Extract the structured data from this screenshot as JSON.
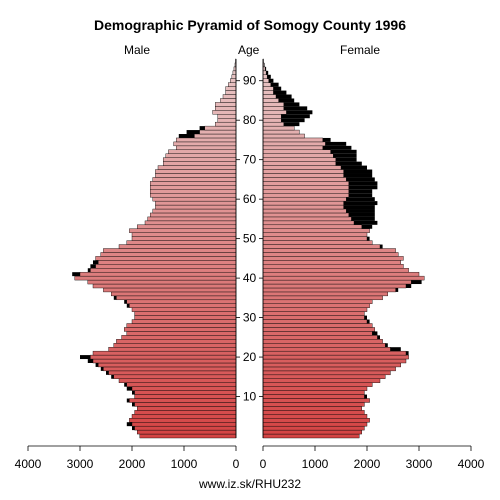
{
  "chart_data": {
    "type": "bar",
    "subtype": "population-pyramid",
    "title": "Demographic Pyramid of Somogy County 1996",
    "left_label": "Male",
    "center_label": "Age",
    "right_label": "Female",
    "source": "www.iz.sk/RHU232",
    "xlim": [
      4000,
      0
    ],
    "x_ticks": [
      "4000",
      "3000",
      "2000",
      "1000",
      "0",
      "0",
      "1000",
      "2000",
      "3000",
      "4000"
    ],
    "age_ticks": [
      10,
      20,
      30,
      40,
      50,
      60,
      70,
      80,
      90
    ],
    "age_min": 0,
    "age_max": 95,
    "colors": {
      "male_young": "#d44444",
      "male_old": "#e8c8c8",
      "female_young": "#d44444",
      "female_old": "#e8c8c8",
      "surplus": "#000000"
    },
    "ages": [
      0,
      1,
      2,
      3,
      4,
      5,
      6,
      7,
      8,
      9,
      10,
      11,
      12,
      13,
      14,
      15,
      16,
      17,
      18,
      19,
      20,
      21,
      22,
      23,
      24,
      25,
      26,
      27,
      28,
      29,
      30,
      31,
      32,
      33,
      34,
      35,
      36,
      37,
      38,
      39,
      40,
      41,
      42,
      43,
      44,
      45,
      46,
      47,
      48,
      49,
      50,
      51,
      52,
      53,
      54,
      55,
      56,
      57,
      58,
      59,
      60,
      61,
      62,
      63,
      64,
      65,
      66,
      67,
      68,
      69,
      70,
      71,
      72,
      73,
      74,
      75,
      76,
      77,
      78,
      79,
      80,
      81,
      82,
      83,
      84,
      85,
      86,
      87,
      88,
      89,
      90,
      91,
      92,
      93,
      94,
      95
    ],
    "male": [
      1850,
      1900,
      2000,
      2100,
      2050,
      2000,
      1950,
      1900,
      2000,
      2100,
      1950,
      2000,
      2100,
      2150,
      2250,
      2400,
      2500,
      2600,
      2700,
      2850,
      3000,
      2750,
      2450,
      2350,
      2300,
      2200,
      2100,
      2150,
      2100,
      2000,
      1950,
      1950,
      2000,
      2100,
      2150,
      2350,
      2400,
      2550,
      2750,
      2850,
      3100,
      3150,
      2850,
      2800,
      2750,
      2700,
      2600,
      2550,
      2250,
      2100,
      2000,
      2000,
      2050,
      1900,
      1750,
      1700,
      1650,
      1600,
      1550,
      1550,
      1600,
      1650,
      1650,
      1650,
      1650,
      1600,
      1550,
      1550,
      1500,
      1400,
      1400,
      1350,
      1300,
      1150,
      1200,
      1150,
      1100,
      950,
      700,
      400,
      350,
      350,
      450,
      400,
      400,
      300,
      250,
      200,
      200,
      150,
      110,
      80,
      60,
      40,
      20,
      10
    ],
    "female": [
      1850,
      1900,
      1950,
      2000,
      2050,
      2000,
      1950,
      1900,
      1950,
      2050,
      2000,
      1950,
      2000,
      2100,
      2250,
      2350,
      2450,
      2550,
      2650,
      2750,
      2800,
      2800,
      2650,
      2400,
      2300,
      2250,
      2200,
      2150,
      2100,
      2050,
      2000,
      1950,
      2000,
      2050,
      2100,
      2300,
      2400,
      2600,
      2850,
      3050,
      3100,
      3000,
      2800,
      2700,
      2650,
      2700,
      2600,
      2550,
      2300,
      2100,
      2050,
      2000,
      2050,
      2100,
      2200,
      2150,
      2150,
      2150,
      2150,
      2200,
      2150,
      2100,
      2100,
      2200,
      2200,
      2150,
      2100,
      2100,
      2000,
      1900,
      1800,
      1800,
      1800,
      1700,
      1600,
      1300,
      800,
      700,
      600,
      700,
      800,
      900,
      950,
      850,
      700,
      600,
      550,
      450,
      350,
      300,
      200,
      150,
      100,
      60,
      30,
      10
    ]
  }
}
